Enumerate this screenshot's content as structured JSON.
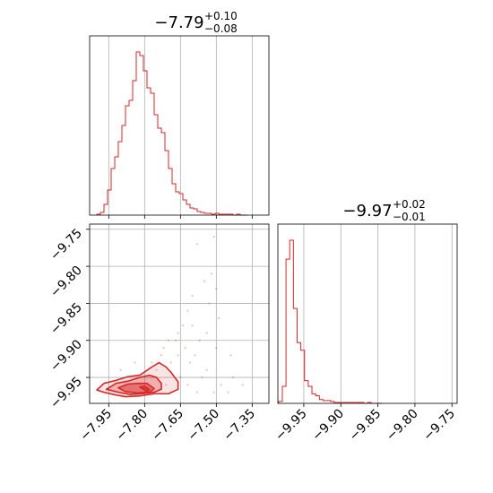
{
  "chart_data": [
    {
      "type": "histogram",
      "panel": "top-left",
      "title": {
        "value": "−7.79",
        "plus": "+0.10",
        "minus": "−0.08"
      },
      "xlim": [
        -8.03,
        -7.28
      ],
      "grid": true,
      "xticks": [
        -7.95,
        -7.8,
        -7.65,
        -7.5,
        -7.35
      ],
      "color": "#d62728",
      "bin_edges": [
        -8.0,
        -7.985,
        -7.97,
        -7.955,
        -7.94,
        -7.925,
        -7.91,
        -7.895,
        -7.88,
        -7.865,
        -7.85,
        -7.835,
        -7.82,
        -7.805,
        -7.79,
        -7.775,
        -7.76,
        -7.745,
        -7.73,
        -7.715,
        -7.7,
        -7.685,
        -7.67,
        -7.655,
        -7.64,
        -7.625,
        -7.61,
        -7.595,
        -7.58,
        -7.565,
        -7.55,
        -7.535,
        -7.52,
        -7.505,
        -7.49,
        -7.475,
        -7.46,
        -7.445,
        -7.43,
        -7.415,
        -7.4,
        -7.385,
        -7.37
      ],
      "counts": [
        1,
        3,
        12,
        28,
        52,
        65,
        82,
        100,
        122,
        128,
        150,
        182,
        178,
        161,
        142,
        136,
        112,
        97,
        92,
        72,
        52,
        35,
        26,
        24,
        17,
        12,
        8,
        7,
        4,
        3,
        2,
        2,
        1,
        2,
        1,
        1,
        1,
        1,
        0,
        1,
        0,
        0
      ]
    },
    {
      "type": "scatter",
      "panel": "bottom-left",
      "xlim": [
        -8.03,
        -7.28
      ],
      "ylim": [
        -9.985,
        -9.743
      ],
      "grid": true,
      "xticks": [
        -7.95,
        -7.8,
        -7.65,
        -7.5,
        -7.35
      ],
      "yticks": [
        -9.75,
        -9.8,
        -9.85,
        -9.9,
        -9.95
      ],
      "color": "#d62728",
      "points": [
        [
          -7.58,
          -9.77
        ],
        [
          -7.52,
          -9.81
        ],
        [
          -7.5,
          -9.83
        ],
        [
          -7.53,
          -9.85
        ],
        [
          -7.62,
          -9.86
        ],
        [
          -7.49,
          -9.87
        ],
        [
          -7.6,
          -9.88
        ],
        [
          -7.66,
          -9.89
        ],
        [
          -7.54,
          -9.89
        ],
        [
          -7.7,
          -9.9
        ],
        [
          -7.57,
          -9.9
        ],
        [
          -7.63,
          -9.91
        ],
        [
          -7.5,
          -9.91
        ],
        [
          -7.73,
          -9.92
        ],
        [
          -7.66,
          -9.92
        ],
        [
          -7.59,
          -9.92
        ],
        [
          -7.84,
          -9.93
        ],
        [
          -7.77,
          -9.93
        ],
        [
          -7.69,
          -9.93
        ],
        [
          -7.61,
          -9.93
        ],
        [
          -7.54,
          -9.94
        ],
        [
          -7.9,
          -9.94
        ],
        [
          -7.75,
          -9.94
        ],
        [
          -7.65,
          -9.95
        ],
        [
          -7.56,
          -9.95
        ],
        [
          -7.71,
          -9.96
        ],
        [
          -7.62,
          -9.96
        ],
        [
          -7.48,
          -9.96
        ],
        [
          -7.58,
          -9.97
        ],
        [
          -7.51,
          -9.97
        ],
        [
          -7.45,
          -9.97
        ],
        [
          -7.44,
          -9.92
        ],
        [
          -7.64,
          -9.88
        ],
        [
          -7.55,
          -9.82
        ],
        [
          -7.51,
          -9.76
        ],
        [
          -7.43,
          -9.95
        ],
        [
          -7.39,
          -9.96
        ],
        [
          -7.67,
          -9.9
        ],
        [
          -7.6,
          -9.84
        ],
        [
          -7.72,
          -9.91
        ]
      ],
      "contour_levels": [
        {
          "level": "outer",
          "x": [
            -8.0,
            -7.97,
            -7.92,
            -7.87,
            -7.82,
            -7.77,
            -7.74,
            -7.71,
            -7.69,
            -7.66,
            -7.66,
            -7.7,
            -7.76,
            -7.82,
            -7.88,
            -7.93,
            -7.97,
            -8.0
          ],
          "y": [
            -9.967,
            -9.958,
            -9.954,
            -9.949,
            -9.947,
            -9.936,
            -9.93,
            -9.936,
            -9.943,
            -9.956,
            -9.966,
            -9.972,
            -9.972,
            -9.975,
            -9.976,
            -9.973,
            -9.97,
            -9.967
          ]
        },
        {
          "level": "middle",
          "x": [
            -7.96,
            -7.92,
            -7.87,
            -7.82,
            -7.78,
            -7.75,
            -7.73,
            -7.73,
            -7.76,
            -7.81,
            -7.86,
            -7.91,
            -7.96
          ],
          "y": [
            -9.966,
            -9.958,
            -9.955,
            -9.95,
            -9.947,
            -9.95,
            -9.958,
            -9.966,
            -9.97,
            -9.972,
            -9.973,
            -9.97,
            -9.966
          ]
        },
        {
          "level": "inner",
          "x": [
            -7.91,
            -7.87,
            -7.83,
            -7.79,
            -7.76,
            -7.78,
            -7.83,
            -7.88,
            -7.91
          ],
          "y": [
            -9.964,
            -9.959,
            -9.958,
            -9.958,
            -9.965,
            -9.97,
            -9.971,
            -9.969,
            -9.964
          ]
        },
        {
          "level": "core",
          "x": [
            -7.82,
            -7.8,
            -7.78,
            -7.79,
            -7.82
          ],
          "y": [
            -9.963,
            -9.962,
            -9.966,
            -9.969,
            -9.963
          ]
        }
      ]
    },
    {
      "type": "histogram",
      "panel": "bottom-right",
      "title": {
        "value": "−9.97",
        "plus": "+0.02",
        "minus": "−0.01"
      },
      "xlim": [
        -9.985,
        -9.743
      ],
      "grid": true,
      "xticks": [
        -9.95,
        -9.9,
        -9.85,
        -9.8,
        -9.75
      ],
      "color": "#d62728",
      "bin_edges": [
        -9.984,
        -9.979,
        -9.974,
        -9.969,
        -9.964,
        -9.959,
        -9.954,
        -9.949,
        -9.944,
        -9.939,
        -9.934,
        -9.929,
        -9.924,
        -9.919,
        -9.914,
        -9.909,
        -9.904,
        -9.899,
        -9.894,
        -9.889,
        -9.884,
        -9.879,
        -9.874,
        -9.869,
        -9.864,
        -9.859,
        -9.854,
        -9.849,
        -9.844
      ],
      "counts": [
        2,
        18,
        152,
        172,
        100,
        64,
        56,
        24,
        18,
        10,
        8,
        4,
        3,
        3,
        2,
        1,
        1,
        1,
        1,
        1,
        1,
        1,
        1,
        0,
        1,
        0,
        0,
        0
      ]
    }
  ]
}
